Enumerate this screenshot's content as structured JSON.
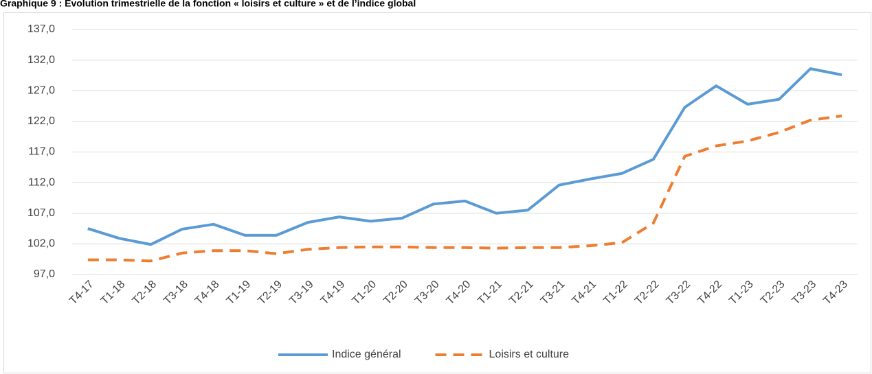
{
  "chart_data": {
    "type": "line",
    "title": "Graphique 9 : Évolution trimestrielle de la fonction « loisirs et culture » et de l’indice global",
    "categories": [
      "T4-17",
      "T1-18",
      "T2-18",
      "T3-18",
      "T4-18",
      "T1-19",
      "T2-19",
      "T3-19",
      "T4-19",
      "T1-20",
      "T2-20",
      "T3-20",
      "T4-20",
      "T1-21",
      "T2-21",
      "T3-21",
      "T4-21",
      "T1-22",
      "T2-22",
      "T3-22",
      "T4-22",
      "T1-23",
      "T2-23",
      "T3-23",
      "T4-23"
    ],
    "series": [
      {
        "name": "Indice général",
        "color": "#5b9bd5",
        "dashed": false,
        "values": [
          104.5,
          102.9,
          101.9,
          104.4,
          105.2,
          103.4,
          103.4,
          105.5,
          106.4,
          105.7,
          106.2,
          108.5,
          109.0,
          107.0,
          107.5,
          111.6,
          112.6,
          113.5,
          115.8,
          124.3,
          127.8,
          124.8,
          125.6,
          130.6,
          129.6
        ]
      },
      {
        "name": "Loisirs et culture",
        "color": "#ed7d31",
        "dashed": true,
        "values": [
          99.4,
          99.4,
          99.2,
          100.5,
          100.9,
          100.9,
          100.4,
          101.1,
          101.4,
          101.5,
          101.5,
          101.4,
          101.4,
          101.3,
          101.4,
          101.4,
          101.7,
          102.2,
          105.4,
          116.3,
          118.0,
          118.8,
          120.2,
          122.2,
          122.9
        ]
      }
    ],
    "ylim": [
      97,
      137
    ],
    "yticks": [
      {
        "value": 97,
        "label": "97,0"
      },
      {
        "value": 102,
        "label": "102,0"
      },
      {
        "value": 107,
        "label": "107,0"
      },
      {
        "value": 112,
        "label": "112,0"
      },
      {
        "value": 117,
        "label": "117,0"
      },
      {
        "value": 122,
        "label": "122,0"
      },
      {
        "value": 127,
        "label": "127,0"
      },
      {
        "value": 132,
        "label": "132,0"
      },
      {
        "value": 137,
        "label": "137,0"
      }
    ],
    "grid": true,
    "legend": "bottom"
  }
}
